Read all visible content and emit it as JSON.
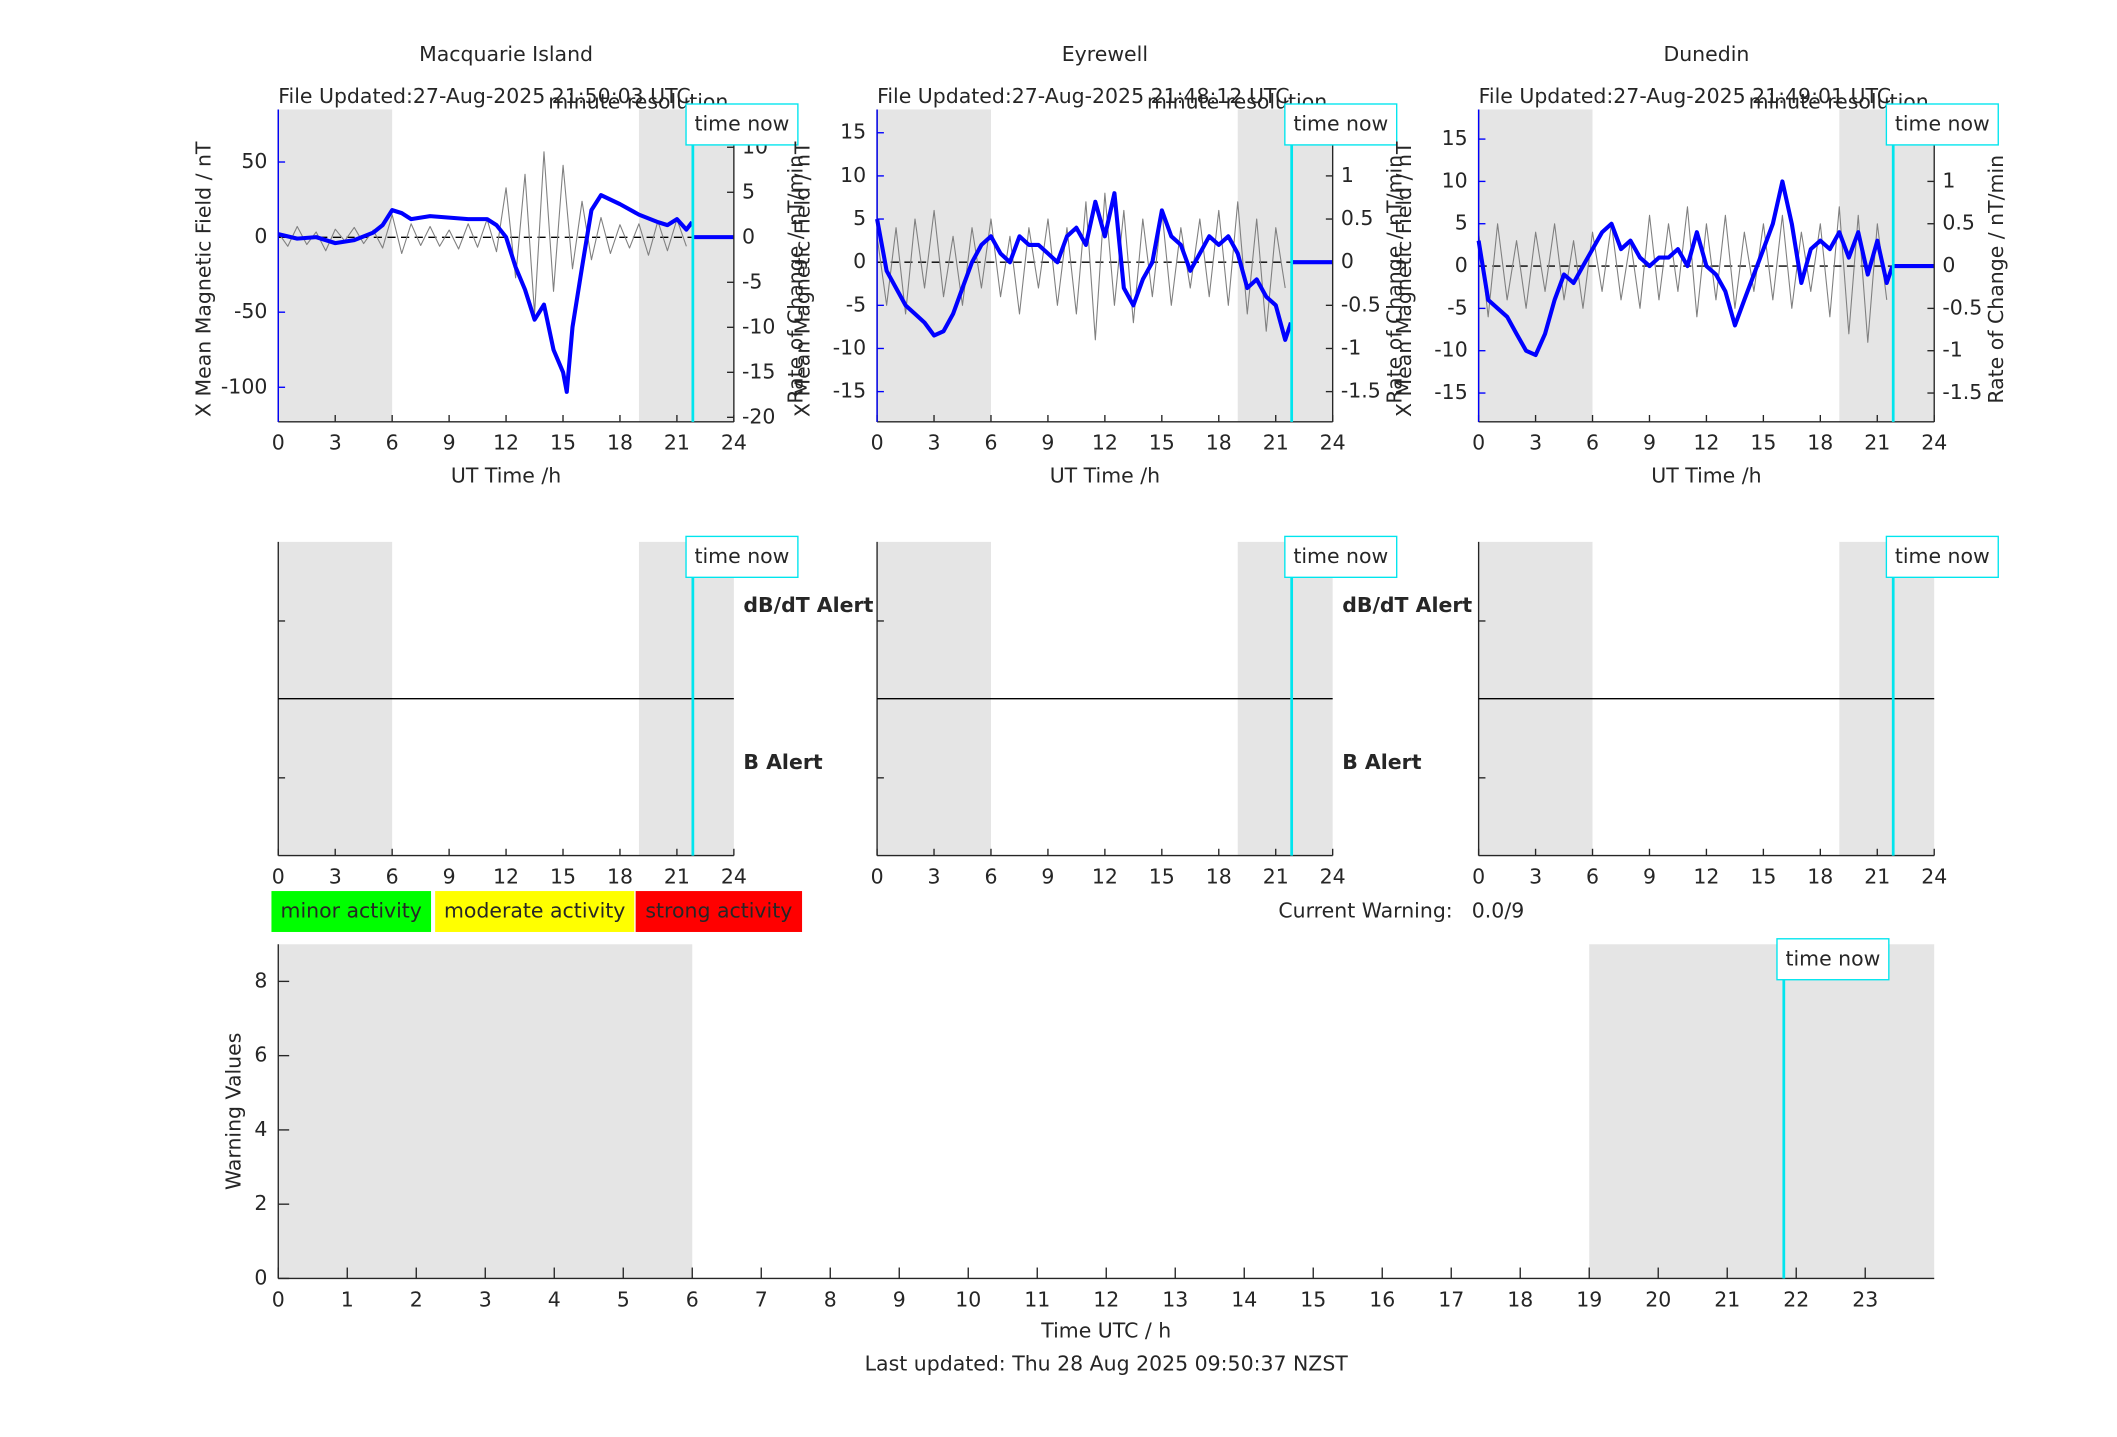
{
  "chart_data": [
    {
      "type": "magnetic",
      "title": "Macquarie Island",
      "file_updated": "File Updated:27-Aug-2025 21:50:03 UTC",
      "resolution": "minute resolution",
      "xlabel": "UT Time /h",
      "ylabel": "X Mean Magnetic Field / nT",
      "y2label": "Rate of Change / nT/min",
      "xlim": [
        0,
        24
      ],
      "xticks": [
        0,
        3,
        6,
        9,
        12,
        15,
        18,
        21,
        24
      ],
      "ylim": [
        -123,
        85
      ],
      "yticks": [
        -100,
        -50,
        0,
        50
      ],
      "y2lim": [
        -20.5,
        14.2
      ],
      "y2ticks": [
        -20,
        -15,
        -10,
        -5,
        0,
        5,
        10
      ],
      "shaded": [
        [
          0,
          6
        ],
        [
          19,
          24
        ]
      ],
      "time_now": 21.84,
      "time_now_label": "time now",
      "series": [
        {
          "color": "#808080",
          "axis": "y2",
          "width": 0.8,
          "x": [
            0,
            0.5,
            1,
            1.5,
            2,
            2.5,
            3,
            3.5,
            4,
            4.5,
            5,
            5.5,
            6,
            6.5,
            7,
            7.5,
            8,
            8.5,
            9,
            9.5,
            10,
            10.5,
            11,
            11.5,
            12,
            12.5,
            13,
            13.5,
            14,
            14.5,
            15,
            15.5,
            16,
            16.5,
            17,
            17.5,
            18,
            18.5,
            19,
            19.5,
            20,
            20.5,
            21,
            21.5
          ],
          "values": [
            0.5,
            -1,
            1.2,
            -0.8,
            0.6,
            -1.5,
            0.9,
            -0.4,
            1.1,
            -0.7,
            0.8,
            -1.2,
            2.5,
            -1.8,
            1.5,
            -0.9,
            1.2,
            -1.0,
            0.8,
            -1.3,
            1.5,
            -1.1,
            2.0,
            -1.6,
            5.5,
            -4.5,
            7.0,
            -8.5,
            9.5,
            -6.0,
            8.0,
            -3.5,
            4.0,
            -2.5,
            2.2,
            -1.8,
            1.4,
            -1.2,
            1.5,
            -2.0,
            1.8,
            -1.5,
            2.0,
            -1.0
          ]
        },
        {
          "color": "#0000ff",
          "axis": "y",
          "width": 3,
          "x": [
            0,
            1,
            2,
            3,
            4,
            5,
            5.5,
            6,
            6.5,
            7,
            8,
            9,
            10,
            11,
            11.5,
            12,
            12.5,
            13,
            13.5,
            14,
            14.5,
            15,
            15.2,
            15.5,
            16,
            16.5,
            17,
            18,
            19,
            20,
            20.5,
            21,
            21.5,
            21.8
          ],
          "values": [
            2,
            -1,
            0,
            -4,
            -2,
            3,
            8,
            18,
            16,
            12,
            14,
            13,
            12,
            12,
            8,
            0,
            -20,
            -35,
            -55,
            -45,
            -75,
            -90,
            -103,
            -60,
            -20,
            18,
            28,
            22,
            15,
            10,
            8,
            12,
            5,
            10
          ]
        },
        {
          "color": "#0000ff",
          "axis": "y",
          "width": 3,
          "x": [
            21.84,
            24
          ],
          "values": [
            0,
            0
          ]
        }
      ]
    },
    {
      "type": "magnetic",
      "title": "Eyrewell",
      "file_updated": "File Updated:27-Aug-2025 21:48:12 UTC",
      "resolution": "minute resolution",
      "xlabel": "UT Time /h",
      "ylabel": "X Mean Magnetic Field / nT",
      "y2label": "Rate of Change / nT/min",
      "xlim": [
        0,
        24
      ],
      "xticks": [
        0,
        3,
        6,
        9,
        12,
        15,
        18,
        21,
        24
      ],
      "ylim": [
        -18.5,
        17.7
      ],
      "yticks": [
        -15,
        -10,
        -5,
        0,
        5,
        10,
        15
      ],
      "y2lim": [
        -1.85,
        1.77
      ],
      "y2ticks": [
        -1.5,
        -1,
        -0.5,
        0,
        0.5,
        1,
        1.5
      ],
      "shaded": [
        [
          0,
          6
        ],
        [
          19,
          24
        ]
      ],
      "time_now": 21.84,
      "time_now_label": "time now",
      "series": [
        {
          "color": "#808080",
          "axis": "y2",
          "width": 0.8,
          "x": [
            0,
            0.5,
            1,
            1.5,
            2,
            2.5,
            3,
            3.5,
            4,
            4.5,
            5,
            5.5,
            6,
            6.5,
            7,
            7.5,
            8,
            8.5,
            9,
            9.5,
            10,
            10.5,
            11,
            11.5,
            12,
            12.5,
            13,
            13.5,
            14,
            14.5,
            15,
            15.5,
            16,
            16.5,
            17,
            17.5,
            18,
            18.5,
            19,
            19.5,
            20,
            20.5,
            21,
            21.5
          ],
          "values": [
            0.3,
            -0.5,
            0.4,
            -0.6,
            0.5,
            -0.3,
            0.6,
            -0.4,
            0.3,
            -0.5,
            0.4,
            -0.3,
            0.5,
            -0.4,
            0.3,
            -0.6,
            0.4,
            -0.3,
            0.5,
            -0.5,
            0.4,
            -0.6,
            0.7,
            -0.9,
            0.8,
            -0.5,
            0.6,
            -0.7,
            0.5,
            -0.4,
            0.6,
            -0.5,
            0.4,
            -0.3,
            0.5,
            -0.4,
            0.6,
            -0.5,
            0.7,
            -0.6,
            0.5,
            -0.8,
            0.4,
            -0.3
          ]
        },
        {
          "color": "#0000ff",
          "axis": "y",
          "width": 3,
          "x": [
            0,
            0.5,
            1,
            1.5,
            2,
            2.5,
            3,
            3.5,
            4,
            4.5,
            5,
            5.5,
            6,
            6.5,
            7,
            7.5,
            8,
            8.5,
            9,
            9.5,
            10,
            10.5,
            11,
            11.5,
            12,
            12.5,
            13,
            13.5,
            14,
            14.5,
            15,
            15.5,
            16,
            16.5,
            17,
            17.5,
            18,
            18.5,
            19,
            19.5,
            20,
            20.5,
            21,
            21.5,
            21.8
          ],
          "values": [
            5,
            -1,
            -3,
            -5,
            -6,
            -7,
            -8.5,
            -8,
            -6,
            -3,
            0,
            2,
            3,
            1,
            0,
            3,
            2,
            2,
            1,
            0,
            3,
            4,
            2,
            7,
            3,
            8,
            -3,
            -5,
            -2,
            0,
            6,
            3,
            2,
            -1,
            1,
            3,
            2,
            3,
            1,
            -3,
            -2,
            -4,
            -5,
            -9,
            -7
          ]
        },
        {
          "color": "#0000ff",
          "axis": "y",
          "width": 3,
          "x": [
            21.84,
            24
          ],
          "values": [
            0,
            0
          ]
        }
      ]
    },
    {
      "type": "magnetic",
      "title": "Dunedin",
      "file_updated": "File Updated:27-Aug-2025 21:49:01 UTC",
      "resolution": "minute resolution",
      "xlabel": "UT Time /h",
      "ylabel": "X Mean Magnetic Field / nT",
      "y2label": "Rate of Change / nT/min",
      "xlim": [
        0,
        24
      ],
      "xticks": [
        0,
        3,
        6,
        9,
        12,
        15,
        18,
        21,
        24
      ],
      "ylim": [
        -18.4,
        18.5
      ],
      "yticks": [
        -15,
        -10,
        -5,
        0,
        5,
        10,
        15
      ],
      "y2lim": [
        -1.84,
        1.85
      ],
      "y2ticks": [
        -1.5,
        -1,
        -0.5,
        0,
        0.5,
        1,
        1.5
      ],
      "shaded": [
        [
          0,
          6
        ],
        [
          19,
          24
        ]
      ],
      "time_now": 21.84,
      "time_now_label": "time now",
      "series": [
        {
          "color": "#808080",
          "axis": "y2",
          "width": 0.8,
          "x": [
            0,
            0.5,
            1,
            1.5,
            2,
            2.5,
            3,
            3.5,
            4,
            4.5,
            5,
            5.5,
            6,
            6.5,
            7,
            7.5,
            8,
            8.5,
            9,
            9.5,
            10,
            10.5,
            11,
            11.5,
            12,
            12.5,
            13,
            13.5,
            14,
            14.5,
            15,
            15.5,
            16,
            16.5,
            17,
            17.5,
            18,
            18.5,
            19,
            19.5,
            20,
            20.5,
            21,
            21.5
          ],
          "values": [
            0.4,
            -0.6,
            0.5,
            -0.4,
            0.3,
            -0.5,
            0.4,
            -0.3,
            0.5,
            -0.4,
            0.3,
            -0.5,
            0.4,
            -0.3,
            0.5,
            -0.4,
            0.3,
            -0.5,
            0.6,
            -0.4,
            0.5,
            -0.3,
            0.7,
            -0.6,
            0.5,
            -0.4,
            0.6,
            -0.5,
            0.4,
            -0.3,
            0.5,
            -0.4,
            0.6,
            -0.5,
            0.4,
            -0.3,
            0.5,
            -0.6,
            0.7,
            -0.8,
            0.6,
            -0.9,
            0.5,
            -0.4
          ]
        },
        {
          "color": "#0000ff",
          "axis": "y",
          "width": 3,
          "x": [
            0,
            0.5,
            1,
            1.5,
            2,
            2.5,
            3,
            3.5,
            4,
            4.5,
            5,
            5.5,
            6,
            6.5,
            7,
            7.5,
            8,
            8.5,
            9,
            9.5,
            10,
            10.5,
            11,
            11.5,
            12,
            12.5,
            13,
            13.5,
            14,
            14.5,
            15,
            15.5,
            16,
            16.5,
            17,
            17.5,
            18,
            18.5,
            19,
            19.5,
            20,
            20.5,
            21,
            21.5,
            21.8
          ],
          "values": [
            3,
            -4,
            -5,
            -6,
            -8,
            -10,
            -10.5,
            -8,
            -4,
            -1,
            -2,
            0,
            2,
            4,
            5,
            2,
            3,
            1,
            0,
            1,
            1,
            2,
            0,
            4,
            0,
            -1,
            -3,
            -7,
            -4,
            -1,
            2,
            5,
            10,
            5,
            -2,
            2,
            3,
            2,
            4,
            1,
            4,
            -1,
            3,
            -2,
            0
          ]
        },
        {
          "color": "#0000ff",
          "axis": "y",
          "width": 3,
          "x": [
            21.84,
            24
          ],
          "values": [
            0,
            0
          ]
        }
      ]
    },
    {
      "type": "alert",
      "xlim": [
        0,
        24
      ],
      "xticks": [
        0,
        3,
        6,
        9,
        12,
        15,
        18,
        21,
        24
      ],
      "shaded": [
        [
          0,
          6
        ],
        [
          19,
          24
        ]
      ],
      "time_now": 21.84,
      "time_now_label": "time now",
      "dbdt_label": "dB/dT Alert",
      "b_label": "B Alert"
    },
    {
      "type": "alert",
      "xlim": [
        0,
        24
      ],
      "xticks": [
        0,
        3,
        6,
        9,
        12,
        15,
        18,
        21,
        24
      ],
      "shaded": [
        [
          0,
          6
        ],
        [
          19,
          24
        ]
      ],
      "time_now": 21.84,
      "time_now_label": "time now",
      "dbdt_label": "dB/dT Alert",
      "b_label": "B Alert"
    },
    {
      "type": "alert",
      "xlim": [
        0,
        24
      ],
      "xticks": [
        0,
        3,
        6,
        9,
        12,
        15,
        18,
        21,
        24
      ],
      "shaded": [
        [
          0,
          6
        ],
        [
          19,
          24
        ]
      ],
      "time_now": 21.84,
      "time_now_label": "time now"
    },
    {
      "type": "warning",
      "legend": [
        {
          "name": "minor activity",
          "color": "#00ff00"
        },
        {
          "name": "moderate activity",
          "color": "#ffff00"
        },
        {
          "name": "strong activity",
          "color": "#ff0000"
        }
      ],
      "current_warning_label": "Current Warning:",
      "current_warning": "0.0/9",
      "xlabel": "Time UTC / h",
      "ylabel": "Warning Values",
      "xlim": [
        0,
        24
      ],
      "xticks": [
        0,
        1,
        2,
        3,
        4,
        5,
        6,
        7,
        8,
        9,
        10,
        11,
        12,
        13,
        14,
        15,
        16,
        17,
        18,
        19,
        20,
        21,
        22,
        23
      ],
      "ylim": [
        0,
        9
      ],
      "yticks": [
        0,
        2,
        4,
        6,
        8
      ],
      "shaded": [
        [
          0,
          6
        ],
        [
          19,
          24
        ]
      ],
      "time_now": 21.82,
      "time_now_label": "time now",
      "footer": "Last updated: Thu 28 Aug 2025 09:50:37 NZST"
    }
  ]
}
